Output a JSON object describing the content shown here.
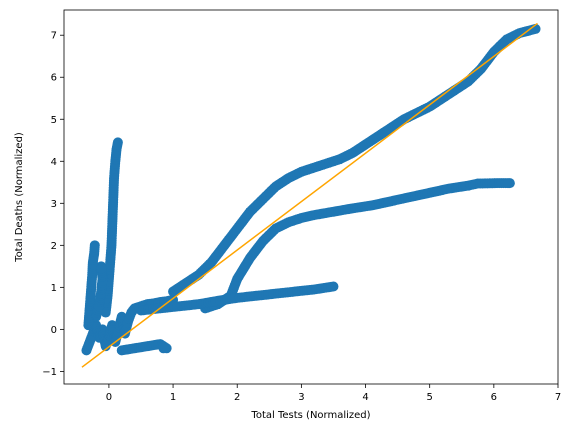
{
  "chart_data": {
    "type": "scatter",
    "title": "",
    "xlabel": "Total Tests (Normalized)",
    "ylabel": "Total Deaths (Normalized)",
    "xlim": [
      -0.7,
      7.0
    ],
    "ylim": [
      -1.3,
      7.6
    ],
    "x_ticks": [
      0,
      1,
      2,
      3,
      4,
      5,
      6,
      7
    ],
    "y_ticks": [
      -1,
      0,
      1,
      2,
      3,
      4,
      5,
      6,
      7
    ],
    "grid": false,
    "legend": "none",
    "colors": {
      "points": "#1f77b4",
      "fit_line": "#ffa500"
    },
    "series": [
      {
        "kind": "points",
        "points": [
          [
            -0.35,
            -0.5
          ],
          [
            -0.3,
            -0.3
          ],
          [
            -0.25,
            -0.1
          ],
          [
            -0.2,
            0.1
          ],
          [
            -0.15,
            -0.2
          ],
          [
            -0.1,
            0.0
          ],
          [
            -0.05,
            -0.4
          ],
          [
            0.0,
            -0.2
          ],
          [
            0.05,
            0.1
          ],
          [
            0.1,
            -0.3
          ],
          [
            0.15,
            0.0
          ],
          [
            0.2,
            0.3
          ],
          [
            0.25,
            -0.1
          ],
          [
            0.3,
            0.2
          ],
          [
            0.35,
            0.4
          ],
          [
            0.4,
            0.5
          ],
          [
            0.5,
            0.55
          ],
          [
            0.6,
            0.6
          ],
          [
            0.7,
            0.62
          ],
          [
            0.8,
            0.65
          ],
          [
            0.9,
            0.67
          ],
          [
            1.0,
            0.7
          ],
          [
            0.2,
            -0.5
          ],
          [
            0.4,
            -0.45
          ],
          [
            0.6,
            -0.4
          ],
          [
            0.8,
            -0.35
          ],
          [
            0.9,
            -0.45
          ],
          [
            -0.05,
            0.4
          ],
          [
            -0.02,
            0.8
          ],
          [
            0.0,
            1.2
          ],
          [
            0.02,
            1.6
          ],
          [
            0.04,
            2.0
          ],
          [
            0.05,
            2.4
          ],
          [
            0.06,
            2.8
          ],
          [
            0.07,
            3.2
          ],
          [
            0.08,
            3.6
          ],
          [
            0.1,
            4.0
          ],
          [
            0.12,
            4.3
          ],
          [
            0.14,
            4.45
          ],
          [
            -0.32,
            0.1
          ],
          [
            -0.3,
            0.5
          ],
          [
            -0.28,
            0.9
          ],
          [
            -0.26,
            1.3
          ],
          [
            -0.25,
            1.6
          ],
          [
            -0.23,
            1.8
          ],
          [
            -0.22,
            2.0
          ],
          [
            -0.2,
            0.3
          ],
          [
            -0.15,
            0.6
          ],
          [
            -0.12,
            0.9
          ],
          [
            -0.1,
            1.2
          ],
          [
            -0.12,
            1.5
          ],
          [
            1.0,
            0.9
          ],
          [
            1.2,
            1.1
          ],
          [
            1.4,
            1.3
          ],
          [
            1.6,
            1.6
          ],
          [
            1.7,
            1.8
          ],
          [
            1.8,
            2.0
          ],
          [
            2.0,
            2.4
          ],
          [
            2.2,
            2.8
          ],
          [
            2.4,
            3.1
          ],
          [
            2.6,
            3.4
          ],
          [
            2.8,
            3.6
          ],
          [
            3.0,
            3.75
          ],
          [
            3.2,
            3.85
          ],
          [
            3.4,
            3.95
          ],
          [
            3.6,
            4.05
          ],
          [
            3.8,
            4.2
          ],
          [
            4.0,
            4.4
          ],
          [
            4.2,
            4.6
          ],
          [
            4.4,
            4.8
          ],
          [
            4.6,
            5.0
          ],
          [
            4.8,
            5.15
          ],
          [
            5.0,
            5.3
          ],
          [
            5.2,
            5.5
          ],
          [
            5.4,
            5.7
          ],
          [
            5.6,
            5.9
          ],
          [
            5.8,
            6.2
          ],
          [
            6.0,
            6.6
          ],
          [
            6.2,
            6.9
          ],
          [
            6.4,
            7.05
          ],
          [
            6.65,
            7.15
          ],
          [
            1.5,
            0.5
          ],
          [
            1.7,
            0.6
          ],
          [
            1.9,
            0.8
          ],
          [
            2.0,
            1.2
          ],
          [
            2.2,
            1.7
          ],
          [
            2.4,
            2.1
          ],
          [
            2.6,
            2.4
          ],
          [
            2.8,
            2.55
          ],
          [
            3.0,
            2.65
          ],
          [
            3.2,
            2.72
          ],
          [
            3.5,
            2.8
          ],
          [
            3.8,
            2.88
          ],
          [
            4.1,
            2.95
          ],
          [
            4.4,
            3.05
          ],
          [
            4.7,
            3.15
          ],
          [
            5.0,
            3.25
          ],
          [
            5.3,
            3.35
          ],
          [
            5.6,
            3.42
          ],
          [
            5.75,
            3.47
          ],
          [
            6.05,
            3.48
          ],
          [
            6.15,
            3.48
          ],
          [
            6.25,
            3.48
          ],
          [
            0.5,
            0.45
          ],
          [
            0.8,
            0.5
          ],
          [
            1.1,
            0.55
          ],
          [
            1.4,
            0.6
          ],
          [
            1.7,
            0.68
          ],
          [
            2.0,
            0.75
          ],
          [
            2.3,
            0.8
          ],
          [
            2.6,
            0.85
          ],
          [
            2.9,
            0.9
          ],
          [
            3.2,
            0.95
          ],
          [
            3.5,
            1.02
          ],
          [
            0.85,
            -0.45
          ]
        ]
      },
      {
        "kind": "line",
        "points": [
          [
            -0.42,
            -0.9
          ],
          [
            6.68,
            7.28
          ]
        ]
      }
    ]
  }
}
